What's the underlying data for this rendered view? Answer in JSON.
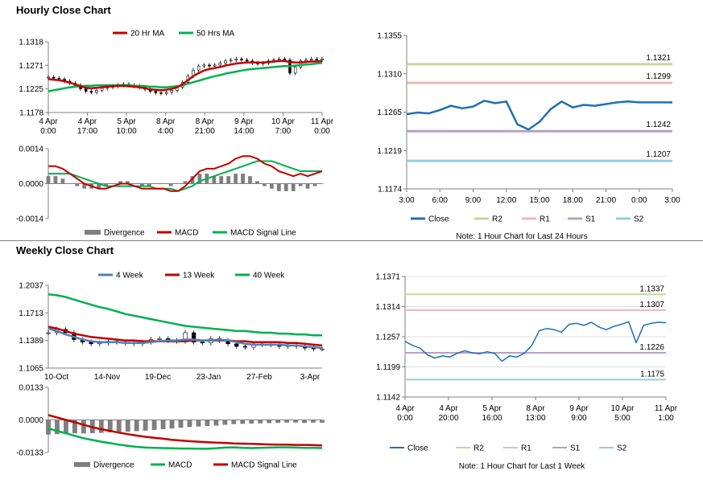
{
  "sections": {
    "hourly_title": "Hourly Close Chart",
    "weekly_title": "Weekly Close Chart"
  },
  "colors": {
    "ma20": "#c00000",
    "ma50": "#00b050",
    "close": "#1f6fb4",
    "r2": "#c3d69b",
    "r1": "#e6b9b8",
    "s1": "#b3a2c7",
    "s2": "#93cddd",
    "divergence": "#7f7f7f",
    "grid": "#b0b0b0",
    "week4": "#4f81bd"
  },
  "chart_data": [
    {
      "id": "hourly-price",
      "type": "candlestick",
      "title": "Hourly Close Chart",
      "legend": [
        "20 Hr MA",
        "50 Hrs MA"
      ],
      "y_ticks": [
        "1.1318",
        "1.1271",
        "1.1225",
        "1.1178"
      ],
      "ylim": [
        1.1178,
        1.1318
      ],
      "x_ticks": [
        [
          "4 Apr",
          "0:00"
        ],
        [
          "4 Apr",
          "17:00"
        ],
        [
          "5 Apr",
          "10:00"
        ],
        [
          "8 Apr",
          "4:00"
        ],
        [
          "8 Apr",
          "21:00"
        ],
        [
          "9 Apr",
          "14:00"
        ],
        [
          "10 Apr",
          "7:00"
        ],
        [
          "11 Apr",
          "0:00"
        ]
      ],
      "close": [
        1.1248,
        1.1246,
        1.1244,
        1.124,
        1.1236,
        1.1232,
        1.1225,
        1.122,
        1.1218,
        1.1222,
        1.1226,
        1.1228,
        1.123,
        1.1232,
        1.1234,
        1.1232,
        1.123,
        1.1228,
        1.1224,
        1.122,
        1.1217,
        1.1216,
        1.1218,
        1.1222,
        1.1228,
        1.1238,
        1.125,
        1.1262,
        1.127,
        1.1272,
        1.127,
        1.1272,
        1.1276,
        1.128,
        1.1282,
        1.1284,
        1.1282,
        1.128,
        1.1276,
        1.1274,
        1.1276,
        1.128,
        1.1282,
        1.1284,
        1.1282,
        1.1256,
        1.1268,
        1.128,
        1.1282,
        1.1284,
        1.1282,
        1.1284
      ],
      "ma20": [
        1.1244,
        1.1243,
        1.1242,
        1.124,
        1.1237,
        1.1234,
        1.123,
        1.1227,
        1.1226,
        1.1227,
        1.1228,
        1.1229,
        1.123,
        1.1231,
        1.1231,
        1.123,
        1.1229,
        1.1228,
        1.1226,
        1.1224,
        1.1223,
        1.1222,
        1.1223,
        1.1225,
        1.1228,
        1.1234,
        1.1242,
        1.125,
        1.1256,
        1.1261,
        1.1264,
        1.1266,
        1.1268,
        1.1271,
        1.1273,
        1.1275,
        1.1276,
        1.1277,
        1.1277,
        1.1277,
        1.1277,
        1.1278,
        1.1279,
        1.128,
        1.128,
        1.1278,
        1.1277,
        1.1277,
        1.1278,
        1.1279,
        1.1279,
        1.128
      ],
      "ma50": [
        1.122,
        1.1222,
        1.1224,
        1.1226,
        1.1228,
        1.1229,
        1.123,
        1.1231,
        1.1231,
        1.1232,
        1.1232,
        1.1232,
        1.1232,
        1.1232,
        1.1232,
        1.1232,
        1.1231,
        1.1231,
        1.123,
        1.1229,
        1.1229,
        1.1228,
        1.1228,
        1.1229,
        1.123,
        1.1232,
        1.1235,
        1.1238,
        1.1241,
        1.1244,
        1.1247,
        1.125,
        1.1252,
        1.1255,
        1.1257,
        1.1259,
        1.1261,
        1.1263,
        1.1264,
        1.1265,
        1.1266,
        1.1267,
        1.1268,
        1.1269,
        1.127,
        1.127,
        1.1271,
        1.1272,
        1.1273,
        1.1274,
        1.1275,
        1.1276
      ]
    },
    {
      "id": "hourly-macd",
      "type": "line+bar",
      "legend": [
        "Divergence",
        "MACD",
        "MACD Signal Line"
      ],
      "y_ticks": [
        "0.0014",
        "0.0000",
        "-0.0014"
      ],
      "ylim": [
        -0.0014,
        0.0014
      ],
      "macd": [
        0.0007,
        0.0007,
        0.0006,
        0.0004,
        0.0002,
        0.0,
        -0.0001,
        -0.0002,
        -0.0002,
        -0.0001,
        0.0,
        0.0,
        -0.0001,
        -0.0002,
        -0.0002,
        -0.0002,
        -0.0002,
        -0.0003,
        -0.0003,
        -0.0001,
        0.0002,
        0.0005,
        0.0006,
        0.0006,
        0.0007,
        0.0008,
        0.001,
        0.0011,
        0.0011,
        0.001,
        0.0008,
        0.0007,
        0.0005,
        0.0004,
        0.0003,
        0.0004,
        0.0003,
        0.0004,
        0.0005
      ],
      "signal": [
        0.0004,
        0.0004,
        0.0004,
        0.0004,
        0.0003,
        0.0002,
        0.0001,
        0.0,
        -0.0001,
        -0.0001,
        -0.0001,
        -0.0001,
        -0.0001,
        -0.0001,
        -0.0001,
        -0.0002,
        -0.0002,
        -0.0002,
        -0.0003,
        -0.0002,
        -0.0001,
        0.0001,
        0.0002,
        0.0003,
        0.0004,
        0.0005,
        0.0006,
        0.0007,
        0.0008,
        0.0009,
        0.0009,
        0.0009,
        0.0008,
        0.0007,
        0.0006,
        0.0005,
        0.0005,
        0.0005,
        0.0005
      ],
      "divergence": [
        0.0003,
        0.0003,
        0.0002,
        0.0,
        -0.0001,
        -0.0002,
        -0.0002,
        -0.0002,
        -0.0001,
        0.0,
        0.0001,
        0.0001,
        0.0,
        -0.0001,
        -0.0001,
        0.0,
        0.0,
        -0.0001,
        0.0,
        0.0001,
        0.0003,
        0.0004,
        0.0004,
        0.0003,
        0.0003,
        0.0003,
        0.0004,
        0.0004,
        0.0003,
        0.0001,
        -0.0001,
        -0.0002,
        -0.0003,
        -0.0003,
        -0.0003,
        -0.0001,
        -0.0002,
        -0.0001,
        0.0
      ]
    },
    {
      "id": "hourly-levels",
      "type": "line",
      "note": "Note: 1 Hour Chart for Last 24 Hours",
      "legend": [
        "Close",
        "R2",
        "R1",
        "S1",
        "S2"
      ],
      "y_ticks": [
        "1.1355",
        "1.1310",
        "1.1265",
        "1.1219",
        "1.1174"
      ],
      "ylim": [
        1.1174,
        1.1355
      ],
      "x_ticks": [
        "3:00",
        "6:00",
        "9:00",
        "12:00",
        "15:00",
        "18:00",
        "21:00",
        "0:00",
        "3:00"
      ],
      "levels": [
        {
          "name": "R2",
          "value": "1.1321"
        },
        {
          "name": "R1",
          "value": "1.1299"
        },
        {
          "name": "S1",
          "value": "1.1242"
        },
        {
          "name": "S2",
          "value": "1.1207"
        }
      ],
      "close": [
        1.1262,
        1.1264,
        1.1263,
        1.1267,
        1.1272,
        1.1269,
        1.1271,
        1.1278,
        1.1275,
        1.1277,
        1.125,
        1.1244,
        1.1253,
        1.1268,
        1.1277,
        1.127,
        1.1273,
        1.1272,
        1.1274,
        1.1276,
        1.1277,
        1.1276,
        1.1276,
        1.1276,
        1.1276
      ]
    },
    {
      "id": "weekly-price",
      "type": "candlestick",
      "title": "Weekly Close Chart",
      "legend": [
        "4 Week",
        "13 Week",
        "40 Week"
      ],
      "y_ticks": [
        "1.2037",
        "1.1713",
        "1.1389",
        "1.1065"
      ],
      "ylim": [
        1.1065,
        1.2037
      ],
      "x_ticks": [
        "10-Oct",
        "14-Nov",
        "19-Dec",
        "23-Jan",
        "27-Feb",
        "3-Apr"
      ],
      "close": [
        1.148,
        1.152,
        1.148,
        1.14,
        1.137,
        1.135,
        1.136,
        1.138,
        1.137,
        1.136,
        1.135,
        1.137,
        1.14,
        1.141,
        1.139,
        1.138,
        1.148,
        1.137,
        1.136,
        1.141,
        1.139,
        1.135,
        1.132,
        1.131,
        1.135,
        1.134,
        1.134,
        1.132,
        1.133,
        1.132,
        1.13,
        1.129,
        1.129
      ],
      "week4": [
        1.153,
        1.15,
        1.146,
        1.143,
        1.14,
        1.138,
        1.137,
        1.137,
        1.137,
        1.136,
        1.136,
        1.136,
        1.137,
        1.138,
        1.139,
        1.139,
        1.14,
        1.14,
        1.139,
        1.139,
        1.14,
        1.139,
        1.137,
        1.135,
        1.134,
        1.134,
        1.134,
        1.134,
        1.133,
        1.133,
        1.132,
        1.131,
        1.13
      ],
      "week13": [
        1.155,
        1.153,
        1.15,
        1.147,
        1.145,
        1.143,
        1.142,
        1.141,
        1.14,
        1.139,
        1.139,
        1.138,
        1.138,
        1.138,
        1.138,
        1.138,
        1.138,
        1.139,
        1.139,
        1.139,
        1.139,
        1.139,
        1.138,
        1.138,
        1.137,
        1.137,
        1.137,
        1.137,
        1.136,
        1.136,
        1.135,
        1.134,
        1.133
      ],
      "week40": [
        1.193,
        1.192,
        1.19,
        1.187,
        1.184,
        1.181,
        1.178,
        1.176,
        1.173,
        1.17,
        1.168,
        1.166,
        1.164,
        1.162,
        1.16,
        1.158,
        1.156,
        1.155,
        1.154,
        1.153,
        1.152,
        1.151,
        1.15,
        1.15,
        1.149,
        1.148,
        1.148,
        1.147,
        1.147,
        1.146,
        1.146,
        1.145,
        1.145
      ]
    },
    {
      "id": "weekly-macd",
      "type": "line+bar",
      "legend": [
        "Divergence",
        "MACD",
        "MACD Signal Line"
      ],
      "y_ticks": [
        "0.0133",
        "0.0000",
        "-0.0133"
      ],
      "ylim": [
        -0.0133,
        0.0133
      ],
      "macd": [
        -0.0035,
        -0.0045,
        -0.0055,
        -0.0065,
        -0.0075,
        -0.0082,
        -0.0089,
        -0.0095,
        -0.0101,
        -0.0106,
        -0.011,
        -0.0113,
        -0.0114,
        -0.0115,
        -0.0116,
        -0.0117,
        -0.0117,
        -0.0118,
        -0.0118,
        -0.0116,
        -0.0113,
        -0.0112,
        -0.0114,
        -0.0115,
        -0.0114,
        -0.0113,
        -0.0112,
        -0.0112,
        -0.0113,
        -0.0114,
        -0.0114,
        -0.0115
      ],
      "signal": [
        0.002,
        0.001,
        0.0,
        -0.001,
        -0.002,
        -0.003,
        -0.0038,
        -0.0045,
        -0.0052,
        -0.0058,
        -0.0064,
        -0.0069,
        -0.0073,
        -0.0077,
        -0.0081,
        -0.0084,
        -0.0087,
        -0.0089,
        -0.0091,
        -0.0093,
        -0.0094,
        -0.0096,
        -0.0097,
        -0.0098,
        -0.0099,
        -0.01,
        -0.0101,
        -0.0101,
        -0.0102,
        -0.0102,
        -0.0103,
        -0.0104
      ],
      "divergence": [
        -0.006,
        -0.0058,
        -0.0056,
        -0.0055,
        -0.0055,
        -0.0054,
        -0.0053,
        -0.0051,
        -0.0049,
        -0.0048,
        -0.0046,
        -0.0044,
        -0.0041,
        -0.0038,
        -0.0035,
        -0.0032,
        -0.0029,
        -0.0027,
        -0.0025,
        -0.0023,
        -0.002,
        -0.0017,
        -0.0016,
        -0.0015,
        -0.0014,
        -0.0013,
        -0.0012,
        -0.0011,
        -0.0011,
        -0.0012,
        -0.0011,
        -0.0011
      ]
    },
    {
      "id": "weekly-levels",
      "type": "line",
      "note": "Note: 1 Hour Chart for Last 1 Week",
      "legend": [
        "Close",
        "R2",
        "R1",
        "S1",
        "S2"
      ],
      "y_ticks": [
        "1.1371",
        "1.1314",
        "1.1257",
        "1.1199",
        "1.1142"
      ],
      "ylim": [
        1.1142,
        1.1371
      ],
      "x_ticks": [
        [
          "4 Apr",
          "0:00"
        ],
        [
          "4 Apr",
          "20:00"
        ],
        [
          "5 Apr",
          "16:00"
        ],
        [
          "8 Apr",
          "13:00"
        ],
        [
          "9 Apr",
          "9:00"
        ],
        [
          "10 Apr",
          "5:00"
        ],
        [
          "11 Apr",
          "1:00"
        ]
      ],
      "levels": [
        {
          "name": "R2",
          "value": "1.1337"
        },
        {
          "name": "R1",
          "value": "1.1307"
        },
        {
          "name": "S1",
          "value": "1.1226"
        },
        {
          "name": "S2",
          "value": "1.1175"
        }
      ],
      "close": [
        1.1248,
        1.124,
        1.1235,
        1.1222,
        1.1216,
        1.122,
        1.1218,
        1.1225,
        1.123,
        1.1226,
        1.1224,
        1.1228,
        1.1225,
        1.121,
        1.122,
        1.1218,
        1.1225,
        1.124,
        1.1268,
        1.1272,
        1.127,
        1.1265,
        1.128,
        1.1282,
        1.1278,
        1.1284,
        1.1275,
        1.127,
        1.1276,
        1.128,
        1.1285,
        1.1245,
        1.1278,
        1.1282,
        1.1284,
        1.1283
      ]
    }
  ]
}
